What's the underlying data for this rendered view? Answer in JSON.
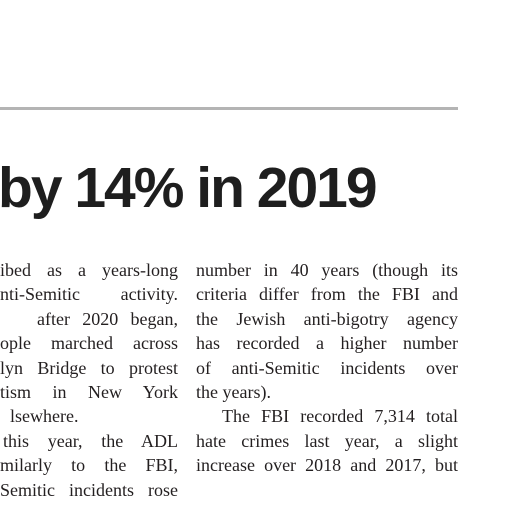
{
  "headline": "by 14% in 2019",
  "left_column": [
    "ibed as a years-long",
    "nti-Semitic activity.",
    "after 2020 began,",
    "ople marched across",
    "lyn Bridge to protest",
    "tism in New York",
    "lsewhere.",
    "this year, the ADL",
    "milarly to the FBI,",
    "Semitic incidents rose"
  ],
  "right_column": [
    "number in 40 years (though its",
    "criteria differ from the FBI and",
    "the Jewish anti-bigotry agency",
    "has recorded a higher number",
    "of anti-Semitic incidents over",
    "the years).",
    "The FBI recorded 7,314 total",
    "hate crimes last year, a slight",
    "increase over 2018 and 2017, but"
  ]
}
